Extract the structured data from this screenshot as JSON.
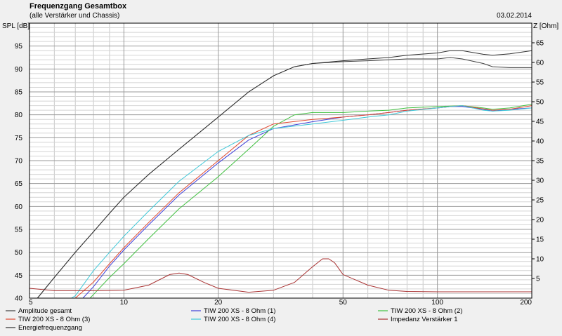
{
  "chart_data": {
    "type": "line",
    "title": "Frequenzgang Gesamtbox",
    "subtitle": "(alle Verstärker und Chassis)",
    "date": "03.02.2014",
    "ylabel": "SPL [dB]",
    "y2label": "Z [Ohm]",
    "xscale": "log",
    "xlim": [
      5,
      200
    ],
    "ylim": [
      40,
      100
    ],
    "y2lim": [
      0,
      70
    ],
    "x_tick_labels": [
      {
        "value": 5,
        "label": "5"
      },
      {
        "value": 10,
        "label": "10"
      },
      {
        "value": 20,
        "label": "20"
      },
      {
        "value": 50,
        "label": "50"
      },
      {
        "value": 100,
        "label": "100"
      },
      {
        "value": 200,
        "label": "200"
      }
    ],
    "y_ticks": [
      40,
      45,
      50,
      55,
      60,
      65,
      70,
      75,
      80,
      85,
      90,
      95
    ],
    "y2_ticks": [
      5,
      10,
      15,
      20,
      25,
      30,
      35,
      40,
      45,
      50,
      55,
      60,
      65
    ],
    "grid": true,
    "legend_position": "bottom",
    "series": [
      {
        "name": "Amplitude gesamt",
        "color": "#404040",
        "axis": "left",
        "points": [
          [
            5.3,
            40
          ],
          [
            6,
            44.5
          ],
          [
            7,
            50
          ],
          [
            8,
            54.5
          ],
          [
            9,
            58.5
          ],
          [
            10,
            62
          ],
          [
            12,
            67
          ],
          [
            15,
            72.5
          ],
          [
            20,
            79.5
          ],
          [
            25,
            85
          ],
          [
            30,
            88.5
          ],
          [
            35,
            90.5
          ],
          [
            40,
            91.2
          ],
          [
            50,
            91.6
          ],
          [
            60,
            91.8
          ],
          [
            70,
            92
          ],
          [
            80,
            92.2
          ],
          [
            100,
            92.2
          ],
          [
            110,
            92.5
          ],
          [
            120,
            92.2
          ],
          [
            140,
            91.2
          ],
          [
            150,
            90.5
          ],
          [
            170,
            90.3
          ],
          [
            200,
            90.3
          ]
        ]
      },
      {
        "name": "TIW 200 XS - 8 Ohm (1)",
        "color": "#4040d8",
        "axis": "left",
        "points": [
          [
            7.4,
            40
          ],
          [
            8,
            42.5
          ],
          [
            9,
            47
          ],
          [
            10,
            50.5
          ],
          [
            12,
            56
          ],
          [
            15,
            62.5
          ],
          [
            20,
            69.5
          ],
          [
            25,
            74.5
          ],
          [
            30,
            77
          ],
          [
            40,
            78.5
          ],
          [
            50,
            79.5
          ],
          [
            60,
            80
          ],
          [
            70,
            80.5
          ],
          [
            80,
            81
          ],
          [
            100,
            81.5
          ],
          [
            110,
            81.8
          ],
          [
            120,
            81.8
          ],
          [
            140,
            81.2
          ],
          [
            150,
            80.8
          ],
          [
            170,
            81.2
          ],
          [
            200,
            81.5
          ]
        ]
      },
      {
        "name": "TIW 200 XS - 8 Ohm (2)",
        "color": "#40c040",
        "axis": "left",
        "points": [
          [
            7.8,
            40
          ],
          [
            8,
            40.8
          ],
          [
            9,
            44.5
          ],
          [
            10,
            47.5
          ],
          [
            12,
            53
          ],
          [
            15,
            59.5
          ],
          [
            20,
            66.5
          ],
          [
            25,
            72.5
          ],
          [
            30,
            77.5
          ],
          [
            35,
            80
          ],
          [
            40,
            80.5
          ],
          [
            50,
            80.5
          ],
          [
            60,
            80.8
          ],
          [
            70,
            81
          ],
          [
            80,
            81.5
          ],
          [
            100,
            81.8
          ],
          [
            120,
            82
          ],
          [
            140,
            81.5
          ],
          [
            150,
            81.2
          ],
          [
            170,
            81.5
          ],
          [
            200,
            82.3
          ]
        ]
      },
      {
        "name": "TIW 200 XS - 8 Ohm (3)",
        "color": "#e04830",
        "axis": "left",
        "points": [
          [
            7,
            40
          ],
          [
            8,
            43.5
          ],
          [
            9,
            47.5
          ],
          [
            10,
            51
          ],
          [
            12,
            56.5
          ],
          [
            15,
            63
          ],
          [
            20,
            70
          ],
          [
            25,
            75.5
          ],
          [
            30,
            78
          ],
          [
            40,
            79
          ],
          [
            50,
            79.5
          ],
          [
            60,
            80
          ],
          [
            70,
            80.5
          ],
          [
            80,
            81
          ],
          [
            100,
            81.5
          ],
          [
            110,
            81.8
          ],
          [
            120,
            82
          ],
          [
            140,
            81.3
          ],
          [
            150,
            81
          ],
          [
            170,
            81.2
          ],
          [
            200,
            82
          ]
        ]
      },
      {
        "name": "TIW 200 XS - 8 Ohm (4)",
        "color": "#40c8d8",
        "axis": "left",
        "points": [
          [
            6.8,
            40
          ],
          [
            7,
            40.5
          ],
          [
            8,
            46
          ],
          [
            9,
            50
          ],
          [
            10,
            53.5
          ],
          [
            12,
            59
          ],
          [
            15,
            65.5
          ],
          [
            20,
            72
          ],
          [
            25,
            75.5
          ],
          [
            30,
            77
          ],
          [
            40,
            78
          ],
          [
            50,
            78.8
          ],
          [
            60,
            79.5
          ],
          [
            70,
            80
          ],
          [
            80,
            80.8
          ],
          [
            100,
            81.5
          ],
          [
            110,
            81.8
          ],
          [
            120,
            82
          ],
          [
            140,
            81
          ],
          [
            150,
            80.8
          ],
          [
            170,
            81
          ],
          [
            200,
            81.5
          ]
        ]
      },
      {
        "name": "Impedanz Verstärker 1",
        "color": "#a83030",
        "axis": "right",
        "points": [
          [
            5,
            2.5
          ],
          [
            6,
            1.9
          ],
          [
            8,
            1.9
          ],
          [
            10,
            2
          ],
          [
            12,
            3.3
          ],
          [
            14,
            6
          ],
          [
            15,
            6.4
          ],
          [
            16,
            6
          ],
          [
            18,
            4
          ],
          [
            20,
            2.5
          ],
          [
            25,
            1.5
          ],
          [
            30,
            2
          ],
          [
            35,
            4
          ],
          [
            40,
            8
          ],
          [
            43,
            10
          ],
          [
            45,
            10
          ],
          [
            47,
            9
          ],
          [
            50,
            6
          ],
          [
            60,
            3.3
          ],
          [
            70,
            2
          ],
          [
            80,
            1.7
          ],
          [
            100,
            1.6
          ],
          [
            150,
            1.6
          ],
          [
            200,
            1.6
          ]
        ]
      },
      {
        "name": "Energiefrequenzgang",
        "color": "#303030",
        "axis": "left",
        "points": [
          [
            5.3,
            40
          ],
          [
            6,
            44.5
          ],
          [
            7,
            50
          ],
          [
            8,
            54.5
          ],
          [
            9,
            58.5
          ],
          [
            10,
            62
          ],
          [
            12,
            67
          ],
          [
            15,
            72.5
          ],
          [
            20,
            79.5
          ],
          [
            25,
            85
          ],
          [
            30,
            88.5
          ],
          [
            35,
            90.5
          ],
          [
            40,
            91.2
          ],
          [
            50,
            91.8
          ],
          [
            60,
            92.2
          ],
          [
            70,
            92.5
          ],
          [
            80,
            93
          ],
          [
            100,
            93.5
          ],
          [
            110,
            94
          ],
          [
            120,
            94
          ],
          [
            140,
            93.2
          ],
          [
            150,
            93
          ],
          [
            170,
            93.3
          ],
          [
            200,
            94
          ]
        ]
      }
    ]
  }
}
